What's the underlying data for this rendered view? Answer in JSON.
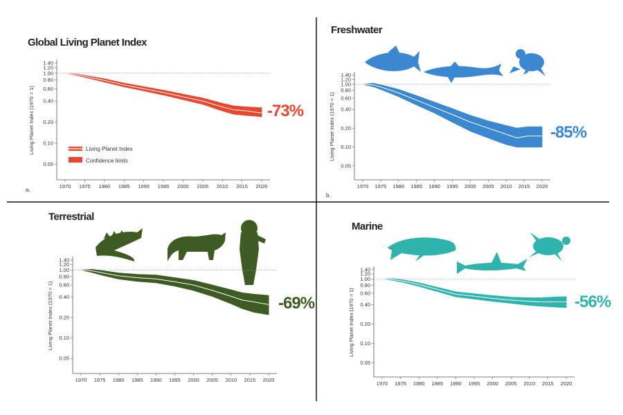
{
  "chart_data": [
    {
      "id": "global",
      "type": "area",
      "title": "Global Living Planet Index",
      "panel_letter": "a.",
      "ylabel": "Living Planet Index (1970 = 1)",
      "yscale": "log",
      "yticks": [
        0.05,
        0.1,
        0.2,
        0.4,
        0.6,
        0.8,
        1.0,
        1.2,
        1.4
      ],
      "ytick_labels": [
        "0.05",
        "0.10",
        "0.20",
        "0.40",
        "0.60",
        "0.80",
        "1.00",
        "1.20",
        "1.40"
      ],
      "xticks": [
        1970,
        1975,
        1980,
        1985,
        1990,
        1995,
        2000,
        2005,
        2010,
        2015,
        2020
      ],
      "ylim": [
        0.03,
        1.5
      ],
      "xlim": [
        1969,
        2021
      ],
      "reference_line": 1.0,
      "color": "#e8462e",
      "line_color": "#ffffff",
      "change_label": "-73%",
      "legend": [
        "Living Planet Index",
        "Confidence limits"
      ],
      "legend_placement": "bottom-left",
      "series": [
        {
          "name": "Living Planet Index",
          "x": [
            1970,
            1973,
            1976,
            1980,
            1985,
            1990,
            1995,
            2000,
            2005,
            2010,
            2013,
            2016,
            2020
          ],
          "values": [
            1.0,
            0.95,
            0.88,
            0.79,
            0.68,
            0.6,
            0.53,
            0.46,
            0.4,
            0.33,
            0.3,
            0.29,
            0.27
          ],
          "lower": [
            1.0,
            0.93,
            0.85,
            0.75,
            0.64,
            0.56,
            0.49,
            0.42,
            0.36,
            0.29,
            0.26,
            0.25,
            0.24
          ],
          "upper": [
            1.0,
            0.97,
            0.91,
            0.83,
            0.72,
            0.64,
            0.57,
            0.5,
            0.44,
            0.37,
            0.34,
            0.33,
            0.32
          ]
        }
      ]
    },
    {
      "id": "freshwater",
      "type": "area",
      "title": "Freshwater",
      "panel_letter": "b.",
      "ylabel": "Living Planet Index (1970 = 1)",
      "yscale": "log",
      "yticks": [
        0.05,
        0.1,
        0.2,
        0.4,
        0.6,
        0.8,
        1.0,
        1.2,
        1.4
      ],
      "ytick_labels": [
        "0.05",
        "0.10",
        "0.20",
        "0.40",
        "0.60",
        "0.80",
        "1.00",
        "1.20",
        "1.40"
      ],
      "xticks": [
        1970,
        1975,
        1980,
        1985,
        1990,
        1995,
        2000,
        2005,
        2010,
        2015,
        2020
      ],
      "ylim": [
        0.03,
        1.5
      ],
      "xlim": [
        1969,
        2021
      ],
      "reference_line": 1.0,
      "color": "#3b87d0",
      "line_color": "#ffffff",
      "change_label": "-85%",
      "series": [
        {
          "x": [
            1970,
            1973,
            1976,
            1980,
            1985,
            1990,
            1995,
            2000,
            2005,
            2010,
            2013,
            2016,
            2020
          ],
          "values": [
            1.0,
            0.98,
            0.87,
            0.73,
            0.56,
            0.43,
            0.33,
            0.25,
            0.2,
            0.16,
            0.14,
            0.15,
            0.15
          ],
          "lower": [
            1.0,
            0.92,
            0.79,
            0.64,
            0.47,
            0.35,
            0.25,
            0.18,
            0.14,
            0.11,
            0.1,
            0.1,
            0.1
          ],
          "upper": [
            1.0,
            1.04,
            0.95,
            0.83,
            0.66,
            0.52,
            0.41,
            0.32,
            0.26,
            0.22,
            0.2,
            0.21,
            0.21
          ]
        }
      ]
    },
    {
      "id": "terrestrial",
      "type": "area",
      "title": "Terrestrial",
      "ylabel": "Living Planet Index (1970 = 1)",
      "yscale": "log",
      "yticks": [
        0.05,
        0.1,
        0.2,
        0.4,
        0.6,
        0.8,
        1.0,
        1.2,
        1.4
      ],
      "ytick_labels": [
        "0.05",
        "0.10",
        "0.20",
        "0.40",
        "0.60",
        "0.80",
        "1.00",
        "1.20",
        "1.40"
      ],
      "xticks": [
        1970,
        1975,
        1980,
        1985,
        1990,
        1995,
        2000,
        2005,
        2010,
        2015,
        2020
      ],
      "ylim": [
        0.03,
        1.5
      ],
      "xlim": [
        1969,
        2021
      ],
      "reference_line": 1.0,
      "color": "#3e5b23",
      "line_color": "#ffffff",
      "change_label": "-69%",
      "series": [
        {
          "x": [
            1970,
            1973,
            1976,
            1980,
            1985,
            1990,
            1995,
            2000,
            2005,
            2010,
            2013,
            2016,
            2020
          ],
          "values": [
            1.0,
            0.97,
            0.9,
            0.82,
            0.77,
            0.74,
            0.67,
            0.6,
            0.5,
            0.41,
            0.36,
            0.34,
            0.31
          ],
          "lower": [
            1.0,
            0.92,
            0.83,
            0.74,
            0.68,
            0.65,
            0.58,
            0.5,
            0.41,
            0.32,
            0.27,
            0.24,
            0.22
          ],
          "upper": [
            1.0,
            1.02,
            0.97,
            0.9,
            0.86,
            0.84,
            0.77,
            0.7,
            0.6,
            0.51,
            0.46,
            0.44,
            0.42
          ]
        }
      ]
    },
    {
      "id": "marine",
      "type": "area",
      "title": "Marine",
      "ylabel": "Living Planet Index (1970 = 1)",
      "yscale": "log",
      "yticks": [
        0.05,
        0.1,
        0.2,
        0.4,
        0.6,
        0.8,
        1.0,
        1.2,
        1.4
      ],
      "ytick_labels": [
        "0.05",
        "0.10",
        "0.20",
        "0.40",
        "0.60",
        "0.80",
        "1.00",
        "1.20",
        "1.40"
      ],
      "xticks": [
        1970,
        1975,
        1980,
        1985,
        1990,
        1995,
        2000,
        2005,
        2010,
        2015,
        2020
      ],
      "ylim": [
        0.03,
        1.5
      ],
      "xlim": [
        1969,
        2021
      ],
      "reference_line": 1.0,
      "color": "#2fb3ac",
      "line_color": "#ffffff",
      "change_label": "-56%",
      "series": [
        {
          "x": [
            1970,
            1973,
            1976,
            1980,
            1985,
            1990,
            1995,
            2000,
            2005,
            2010,
            2013,
            2016,
            2020
          ],
          "values": [
            1.0,
            0.98,
            0.92,
            0.82,
            0.69,
            0.58,
            0.54,
            0.5,
            0.47,
            0.45,
            0.44,
            0.44,
            0.44
          ],
          "lower": [
            1.0,
            0.95,
            0.88,
            0.77,
            0.64,
            0.53,
            0.49,
            0.45,
            0.42,
            0.39,
            0.38,
            0.37,
            0.36
          ],
          "upper": [
            1.0,
            1.01,
            0.96,
            0.87,
            0.74,
            0.63,
            0.59,
            0.55,
            0.52,
            0.51,
            0.51,
            0.52,
            0.53
          ]
        }
      ]
    }
  ],
  "icons": {
    "freshwater": [
      "salmon-icon",
      "sturgeon-icon",
      "frog-icon"
    ],
    "terrestrial": [
      "iguana-icon",
      "wild-cat-icon",
      "primate-icon"
    ],
    "marine": [
      "whale-icon",
      "hammerhead-shark-icon",
      "sea-turtle-icon"
    ]
  }
}
